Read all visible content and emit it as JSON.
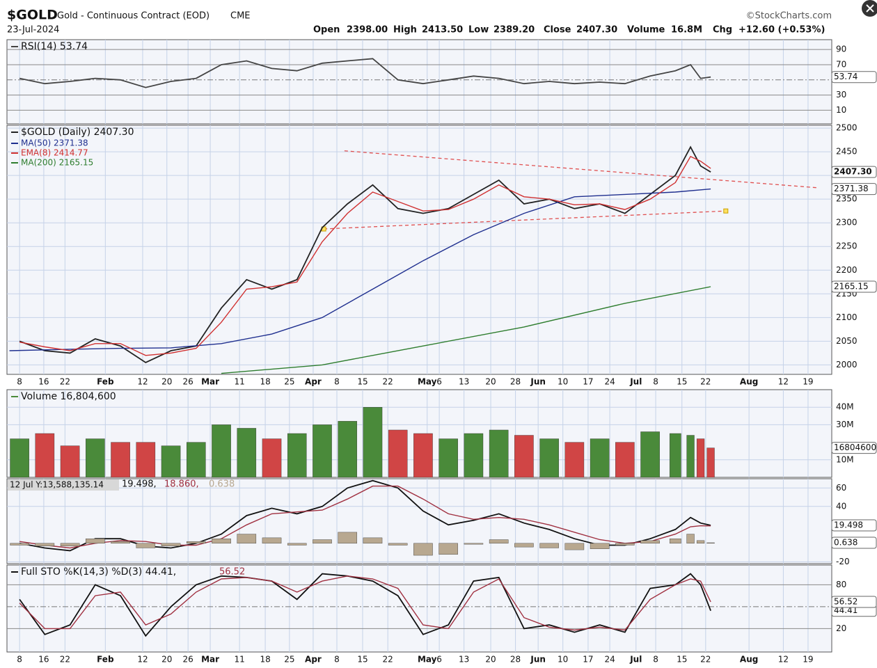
{
  "header": {
    "symbol": "$GOLD",
    "name": "Gold - Continuous Contract (EOD)",
    "exchange": "CME",
    "date": "23-Jul-2024",
    "source": "©StockCharts.com",
    "stats": [
      {
        "label": "Open",
        "value": "2398.00"
      },
      {
        "label": "High",
        "value": "2413.50"
      },
      {
        "label": "Low",
        "value": "2389.20"
      },
      {
        "label": "Close",
        "value": "2407.30"
      },
      {
        "label": "Volume",
        "value": "16.8M"
      },
      {
        "label": "Chg",
        "value": "+12.60 (+0.53%)"
      }
    ]
  },
  "chart_data": [
    {
      "type": "line",
      "x": [
        0,
        5,
        10,
        15,
        20,
        25,
        30,
        35,
        40,
        45,
        50,
        55,
        60,
        65,
        70,
        75,
        80,
        85,
        90,
        95,
        100,
        105,
        110,
        115,
        120,
        125,
        130,
        133,
        135,
        137
      ],
      "xlim": [
        -2.5,
        161
      ],
      "ylim": [
        -8,
        103
      ],
      "yticks": [
        90,
        70,
        30,
        10
      ],
      "midline": 50,
      "series": [
        {
          "name": "RSI(14) 53.74",
          "color": "#444444",
          "value_label": "53.74",
          "values": [
            52,
            45,
            48,
            52,
            50,
            40,
            48,
            52,
            70,
            75,
            65,
            62,
            72,
            75,
            78,
            50,
            45,
            50,
            55,
            52,
            45,
            48,
            45,
            47,
            45,
            55,
            62,
            70,
            52,
            53.74
          ]
        }
      ]
    },
    {
      "type": "price",
      "x": [
        0,
        5,
        10,
        15,
        20,
        25,
        30,
        35,
        40,
        45,
        50,
        55,
        60,
        65,
        70,
        75,
        80,
        85,
        90,
        95,
        100,
        105,
        110,
        115,
        120,
        125,
        130,
        133,
        135,
        137
      ],
      "xlim": [
        -2.5,
        161
      ],
      "ylim": [
        1980,
        2506
      ],
      "yticks": [
        2000,
        2050,
        2100,
        2150,
        2200,
        2250,
        2300,
        2350,
        2400,
        2450,
        2500
      ],
      "xticks": [
        {
          "value": 0,
          "label": "8"
        },
        {
          "value": 4.8,
          "label": "16"
        },
        {
          "value": 9,
          "label": "22"
        },
        {
          "value": 17,
          "label": "Feb"
        },
        {
          "value": 24.4,
          "label": "12"
        },
        {
          "value": 29.2,
          "label": "20"
        },
        {
          "value": 33.4,
          "label": "26"
        },
        {
          "value": 37.8,
          "label": "Mar"
        },
        {
          "value": 43.6,
          "label": "11"
        },
        {
          "value": 48.7,
          "label": "18"
        },
        {
          "value": 53.5,
          "label": "25"
        },
        {
          "value": 58.2,
          "label": "Apr"
        },
        {
          "value": 62.9,
          "label": "8"
        },
        {
          "value": 68,
          "label": "15"
        },
        {
          "value": 73,
          "label": "22"
        },
        {
          "value": 80.8,
          "label": "May"
        },
        {
          "value": 83.2,
          "label": "6"
        },
        {
          "value": 88.1,
          "label": "13"
        },
        {
          "value": 93.4,
          "label": "20"
        },
        {
          "value": 98.3,
          "label": "28"
        },
        {
          "value": 102.8,
          "label": "Jun"
        },
        {
          "value": 107.7,
          "label": "10"
        },
        {
          "value": 112.7,
          "label": "17"
        },
        {
          "value": 117,
          "label": "24"
        },
        {
          "value": 122.2,
          "label": "Jul"
        },
        {
          "value": 126.1,
          "label": "8"
        },
        {
          "value": 131.3,
          "label": "15"
        },
        {
          "value": 136,
          "label": "22"
        },
        {
          "value": 144.6,
          "label": "Aug"
        },
        {
          "value": 151.4,
          "label": "12"
        },
        {
          "value": 156.3,
          "label": "19"
        }
      ],
      "series": [
        {
          "name": "$GOLD (Daily) 2407.30",
          "color": "#222222",
          "value_label": "2407.30",
          "values": [
            2050,
            2030,
            2025,
            2055,
            2040,
            2005,
            2030,
            2040,
            2120,
            2180,
            2160,
            2180,
            2290,
            2340,
            2380,
            2330,
            2320,
            2330,
            2360,
            2390,
            2340,
            2350,
            2330,
            2340,
            2320,
            2360,
            2400,
            2460,
            2420,
            2407.3
          ]
        },
        {
          "name": "MA(50) 2371.38",
          "color": "#1f2f8f",
          "value_label": "2371.38",
          "x": [
            -2,
            10,
            20,
            30,
            40,
            50,
            60,
            70,
            80,
            90,
            100,
            110,
            120,
            130,
            137
          ],
          "values": [
            2030,
            2033,
            2035,
            2036,
            2045,
            2065,
            2100,
            2160,
            2220,
            2275,
            2320,
            2355,
            2360,
            2365,
            2371.38
          ]
        },
        {
          "name": "EMA(8) 2414.77",
          "color": "#d03030",
          "values": [
            2048,
            2038,
            2030,
            2045,
            2045,
            2020,
            2025,
            2035,
            2090,
            2160,
            2165,
            2175,
            2260,
            2320,
            2365,
            2345,
            2325,
            2328,
            2350,
            2380,
            2355,
            2350,
            2338,
            2340,
            2328,
            2350,
            2385,
            2440,
            2430,
            2414.77
          ]
        },
        {
          "name": "MA(200) 2165.15",
          "color": "#2e7d2e",
          "value_label": "2165.15",
          "x": [
            40,
            60,
            80,
            100,
            120,
            137
          ],
          "values": [
            1982,
            2000,
            2040,
            2080,
            2130,
            2165.15
          ]
        }
      ],
      "trendlines": [
        {
          "x": [
            64.4,
            158.2
          ],
          "values": [
            2452,
            2374
          ]
        },
        {
          "x": [
            60.3,
            140
          ],
          "values": [
            2287,
            2325
          ]
        }
      ],
      "trend_color": "#e05050"
    },
    {
      "type": "volume",
      "x": [
        0,
        5,
        10,
        15,
        20,
        25,
        30,
        35,
        40,
        45,
        50,
        55,
        60,
        65,
        70,
        75,
        80,
        85,
        90,
        95,
        100,
        105,
        110,
        115,
        120,
        125,
        130,
        133,
        135,
        137
      ],
      "xlim": [
        -2.5,
        161
      ],
      "ylim": [
        0,
        50
      ],
      "yticks": [
        {
          "value": 10,
          "label": "10M"
        },
        {
          "value": 30,
          "label": "30M"
        },
        {
          "value": 40,
          "label": "40M"
        }
      ],
      "up_color": "#4a8a3a",
      "down_color": "#d04545",
      "series": [
        {
          "name": "Volume 16,804,600",
          "color": "#4a8a3a",
          "value_label": "16804600",
          "values": [
            22,
            25,
            18,
            22,
            20,
            20,
            18,
            20,
            30,
            28,
            22,
            25,
            30,
            32,
            40,
            27,
            25,
            22,
            25,
            27,
            24,
            22,
            20,
            22,
            20,
            26,
            25,
            24,
            22,
            16.8
          ]
        }
      ]
    },
    {
      "type": "macd",
      "x": [
        0,
        5,
        10,
        15,
        20,
        25,
        30,
        35,
        40,
        45,
        50,
        55,
        60,
        65,
        70,
        75,
        80,
        85,
        90,
        95,
        100,
        105,
        110,
        115,
        120,
        125,
        130,
        133,
        135,
        137
      ],
      "xlim": [
        -2.5,
        161
      ],
      "ylim": [
        -22,
        70
      ],
      "yticks": [
        60,
        40,
        -20
      ],
      "cursor": "12 Jul Y:13,588,135.14",
      "series": [
        {
          "name": "19.498,",
          "color": "#111111",
          "value_label": "19.498",
          "values": [
            0,
            -5,
            -8,
            5,
            5,
            -3,
            -5,
            0,
            10,
            30,
            38,
            32,
            40,
            60,
            68,
            60,
            35,
            20,
            25,
            32,
            22,
            15,
            5,
            -2,
            -2,
            5,
            15,
            28,
            22,
            19.498
          ]
        },
        {
          "name": "18.860,",
          "color": "#a03040",
          "values": [
            2,
            -2,
            -5,
            0,
            3,
            2,
            -2,
            -2,
            5,
            20,
            32,
            34,
            36,
            48,
            62,
            62,
            48,
            32,
            26,
            28,
            26,
            20,
            12,
            4,
            0,
            2,
            10,
            18,
            19,
            18.86
          ]
        },
        {
          "name": "0.638",
          "color": "#b8a890",
          "style": "bar",
          "value_label": "0.638",
          "values": [
            -2,
            -3,
            -3,
            5,
            2,
            -5,
            -3,
            2,
            5,
            10,
            6,
            -2,
            4,
            12,
            6,
            -2,
            -13,
            -12,
            -1,
            4,
            -4,
            -5,
            -7,
            -6,
            -2,
            3,
            5,
            10,
            3,
            0.638
          ]
        }
      ]
    },
    {
      "type": "line",
      "x": [
        0,
        5,
        10,
        15,
        20,
        25,
        30,
        35,
        40,
        45,
        50,
        55,
        60,
        65,
        70,
        75,
        80,
        85,
        90,
        95,
        100,
        105,
        110,
        115,
        120,
        125,
        130,
        133,
        135,
        137
      ],
      "xlim": [
        -2.5,
        161
      ],
      "ylim": [
        -12,
        107
      ],
      "yticks": [
        80,
        20
      ],
      "midline": 50,
      "xticks": [
        {
          "value": 0,
          "label": "8"
        },
        {
          "value": 4.8,
          "label": "16"
        },
        {
          "value": 9,
          "label": "22"
        },
        {
          "value": 17,
          "label": "Feb"
        },
        {
          "value": 24.4,
          "label": "12"
        },
        {
          "value": 29.2,
          "label": "20"
        },
        {
          "value": 33.4,
          "label": "26"
        },
        {
          "value": 37.8,
          "label": "Mar"
        },
        {
          "value": 43.6,
          "label": "11"
        },
        {
          "value": 48.7,
          "label": "18"
        },
        {
          "value": 53.5,
          "label": "25"
        },
        {
          "value": 58.2,
          "label": "Apr"
        },
        {
          "value": 62.9,
          "label": "8"
        },
        {
          "value": 68,
          "label": "15"
        },
        {
          "value": 73,
          "label": "22"
        },
        {
          "value": 80.8,
          "label": "May"
        },
        {
          "value": 83.2,
          "label": "6"
        },
        {
          "value": 88.1,
          "label": "13"
        },
        {
          "value": 93.4,
          "label": "20"
        },
        {
          "value": 98.3,
          "label": "28"
        },
        {
          "value": 102.8,
          "label": "Jun"
        },
        {
          "value": 107.7,
          "label": "10"
        },
        {
          "value": 112.7,
          "label": "17"
        },
        {
          "value": 117,
          "label": "24"
        },
        {
          "value": 122.2,
          "label": "Jul"
        },
        {
          "value": 126.1,
          "label": "8"
        },
        {
          "value": 131.3,
          "label": "15"
        },
        {
          "value": 136,
          "label": "22"
        },
        {
          "value": 144.6,
          "label": "Aug"
        },
        {
          "value": 151.4,
          "label": "12"
        },
        {
          "value": 156.3,
          "label": "19"
        }
      ],
      "series": [
        {
          "name": "Full STO %K(14,3) %D(3) 44.41,",
          "color": "#111111",
          "value_label": "44.41",
          "values": [
            60,
            12,
            25,
            80,
            65,
            10,
            50,
            80,
            92,
            90,
            85,
            60,
            95,
            92,
            85,
            65,
            12,
            25,
            85,
            90,
            20,
            25,
            15,
            25,
            15,
            75,
            80,
            95,
            80,
            44.41
          ]
        },
        {
          "name": "56.52",
          "color": "#a03040",
          "value_label": "56.52",
          "values": [
            55,
            20,
            20,
            65,
            70,
            25,
            40,
            70,
            88,
            90,
            85,
            70,
            85,
            92,
            88,
            75,
            25,
            20,
            70,
            88,
            35,
            22,
            18,
            22,
            18,
            60,
            80,
            88,
            85,
            56.52
          ]
        }
      ]
    }
  ]
}
